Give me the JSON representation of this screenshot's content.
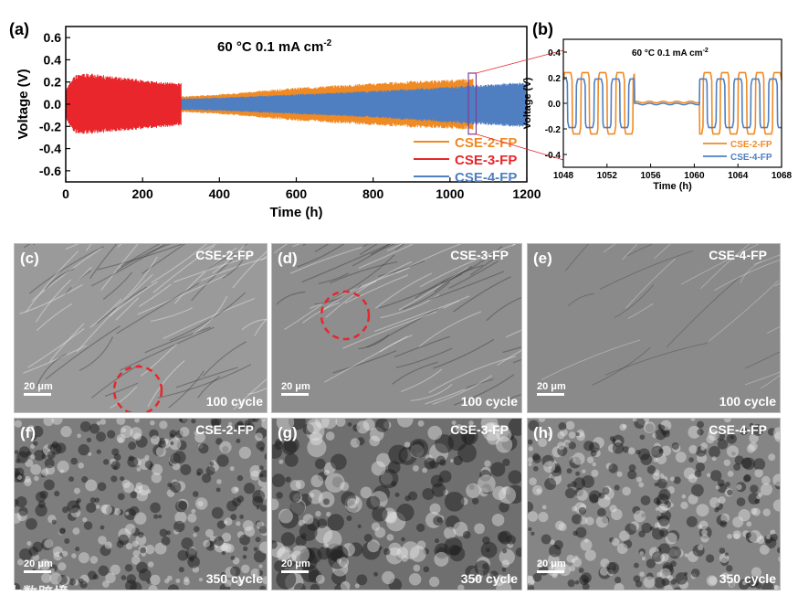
{
  "chart_data": [
    {
      "id": "a",
      "type": "line",
      "panel_label": "(a)",
      "title": "60 °C  0.1 mA cm",
      "title_sup": "-2",
      "xlabel": "Time (h)",
      "ylabel": "Voltage (V)",
      "xlim": [
        0,
        1200
      ],
      "ylim": [
        -0.7,
        0.7
      ],
      "xticks": [
        "0",
        "200",
        "400",
        "600",
        "800",
        "1000",
        "1200"
      ],
      "yticks": [
        "-0.6",
        "-0.4",
        "-0.2",
        "0.0",
        "0.2",
        "0.4",
        "0.6"
      ],
      "legend_position": "bottom-right",
      "series": [
        {
          "name": "CSE-2-FP",
          "color": "#f08a24",
          "x": [
            0,
            100,
            200,
            300,
            400,
            500,
            600,
            700,
            800,
            900,
            1000,
            1060
          ],
          "y_max": [
            0.05,
            0.05,
            0.06,
            0.07,
            0.09,
            0.12,
            0.15,
            0.17,
            0.19,
            0.21,
            0.22,
            0.23
          ],
          "y_min": [
            -0.05,
            -0.05,
            -0.06,
            -0.07,
            -0.09,
            -0.12,
            -0.15,
            -0.17,
            -0.19,
            -0.21,
            -0.22,
            -0.23
          ]
        },
        {
          "name": "CSE-3-FP",
          "color": "#e8262b",
          "x": [
            0,
            20,
            60,
            150,
            250,
            300
          ],
          "y_max": [
            0.12,
            0.26,
            0.28,
            0.24,
            0.2,
            0.19
          ],
          "y_min": [
            -0.12,
            -0.26,
            -0.27,
            -0.24,
            -0.21,
            -0.19
          ]
        },
        {
          "name": "CSE-4-FP",
          "color": "#4f7fc1",
          "x": [
            0,
            200,
            400,
            600,
            800,
            1000,
            1200
          ],
          "y_max": [
            0.04,
            0.04,
            0.06,
            0.09,
            0.12,
            0.16,
            0.2
          ],
          "y_min": [
            -0.04,
            -0.04,
            -0.06,
            -0.09,
            -0.12,
            -0.17,
            -0.21
          ]
        }
      ],
      "zoom_box_x": [
        1048,
        1068
      ]
    },
    {
      "id": "b",
      "type": "line",
      "panel_label": "(b)",
      "title": "60 °C  0.1 mA cm",
      "title_sup": "-2",
      "xlabel": "Time (h)",
      "ylabel": "Voltage (V)",
      "xlim": [
        1048,
        1068
      ],
      "ylim": [
        -0.5,
        0.5
      ],
      "xticks": [
        "1048",
        "1052",
        "1056",
        "1060",
        "1064",
        "1068"
      ],
      "yticks": [
        "-0.4",
        "-0.2",
        "0.0",
        "0.2",
        "0.4"
      ],
      "legend_position": "bottom-right",
      "series": [
        {
          "name": "CSE-2-FP",
          "color": "#f08a24",
          "amplitude": 0.24,
          "period": 1.6,
          "phase": 0.0,
          "flat_range": [
            1054.5,
            1060.5
          ]
        },
        {
          "name": "CSE-4-FP",
          "color": "#4f7fc1",
          "amplitude": 0.19,
          "period": 1.6,
          "phase": 0.4,
          "flat_range": [
            1054.5,
            1060.5
          ]
        }
      ]
    }
  ],
  "sem_panels": [
    {
      "label": "(c)",
      "sample": "CSE-2-FP",
      "cycle": "100 cycle",
      "scale": "20 μm"
    },
    {
      "label": "(d)",
      "sample": "CSE-3-FP",
      "cycle": "100 cycle",
      "scale": "20 μm"
    },
    {
      "label": "(e)",
      "sample": "CSE-4-FP",
      "cycle": "100 cycle",
      "scale": "20 μm"
    },
    {
      "label": "(f)",
      "sample": "CSE-2-FP",
      "cycle": "350 cycle",
      "scale": "20 μm"
    },
    {
      "label": "(g)",
      "sample": "CSE-3-FP",
      "cycle": "350 cycle",
      "scale": "20 μm"
    },
    {
      "label": "(h)",
      "sample": "CSE-4-FP",
      "cycle": "350 cycle",
      "scale": "20 μm"
    }
  ],
  "watermark": "大数跨境",
  "colors": {
    "highlight_circle": "#e8262b",
    "zoom_box": "#7d3c98"
  }
}
